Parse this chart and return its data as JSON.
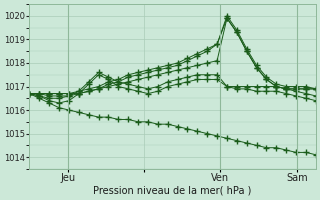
{
  "bg_color": "#cce8d8",
  "grid_color": "#aaccb8",
  "line_color": "#1a5c1a",
  "marker": "+",
  "marker_size": 4,
  "marker_lw": 1.0,
  "xlabel_text": "Pression niveau de la mer( hPa )",
  "ylim": [
    1013.5,
    1020.5
  ],
  "yticks": [
    1014,
    1015,
    1016,
    1017,
    1018,
    1019,
    1020
  ],
  "xlim": [
    0,
    30
  ],
  "xtick_positions": [
    4,
    12,
    20,
    28
  ],
  "xtick_labels": [
    "Jeu",
    "",
    "Ven",
    "Sam"
  ],
  "vlines": [
    4,
    20,
    28
  ],
  "lines": [
    [
      1016.7,
      1016.7,
      1016.7,
      1016.7,
      1016.7,
      1016.7,
      1016.8,
      1016.9,
      1017.0,
      1017.1,
      1017.2,
      1017.3,
      1017.4,
      1017.5,
      1017.6,
      1017.7,
      1017.8,
      1017.9,
      1018.0,
      1018.1,
      1019.9,
      1019.3,
      1018.5,
      1017.8,
      1017.3,
      1017.0,
      1016.9,
      1016.9,
      1016.9,
      1016.9
    ],
    [
      1016.7,
      1016.7,
      1016.7,
      1016.7,
      1016.7,
      1016.8,
      1016.9,
      1017.0,
      1017.2,
      1017.3,
      1017.5,
      1017.6,
      1017.7,
      1017.8,
      1017.9,
      1018.0,
      1018.2,
      1018.4,
      1018.6,
      1018.8,
      1020.0,
      1019.4,
      1018.6,
      1017.9,
      1017.4,
      1017.1,
      1017.0,
      1017.0,
      1017.0,
      1016.9
    ],
    [
      1016.7,
      1016.7,
      1016.6,
      1016.6,
      1016.6,
      1016.7,
      1016.8,
      1016.9,
      1017.1,
      1017.2,
      1017.4,
      1017.5,
      1017.6,
      1017.7,
      1017.8,
      1017.9,
      1018.1,
      1018.3,
      1018.5,
      1018.8,
      1019.9,
      1019.3,
      1018.5,
      1017.8,
      1017.3,
      1017.0,
      1016.9,
      1016.9,
      1016.9,
      1016.9
    ],
    [
      1016.7,
      1016.6,
      1016.5,
      1016.5,
      1016.6,
      1016.8,
      1017.2,
      1017.6,
      1017.4,
      1017.2,
      1017.1,
      1017.0,
      1016.9,
      1017.0,
      1017.2,
      1017.3,
      1017.4,
      1017.5,
      1017.5,
      1017.5,
      1017.0,
      1017.0,
      1017.0,
      1017.0,
      1017.0,
      1017.0,
      1016.9,
      1016.8,
      1016.7,
      1016.6
    ],
    [
      1016.7,
      1016.6,
      1016.4,
      1016.3,
      1016.4,
      1016.7,
      1017.1,
      1017.5,
      1017.3,
      1017.0,
      1016.9,
      1016.8,
      1016.7,
      1016.8,
      1017.0,
      1017.1,
      1017.2,
      1017.3,
      1017.3,
      1017.3,
      1017.0,
      1016.9,
      1016.9,
      1016.8,
      1016.8,
      1016.8,
      1016.7,
      1016.6,
      1016.5,
      1016.4
    ],
    [
      1016.7,
      1016.5,
      1016.3,
      1016.1,
      1016.0,
      1015.9,
      1015.8,
      1015.7,
      1015.7,
      1015.6,
      1015.6,
      1015.5,
      1015.5,
      1015.4,
      1015.4,
      1015.3,
      1015.2,
      1015.1,
      1015.0,
      1014.9,
      1014.8,
      1014.7,
      1014.6,
      1014.5,
      1014.4,
      1014.4,
      1014.3,
      1014.2,
      1014.2,
      1014.1
    ]
  ]
}
